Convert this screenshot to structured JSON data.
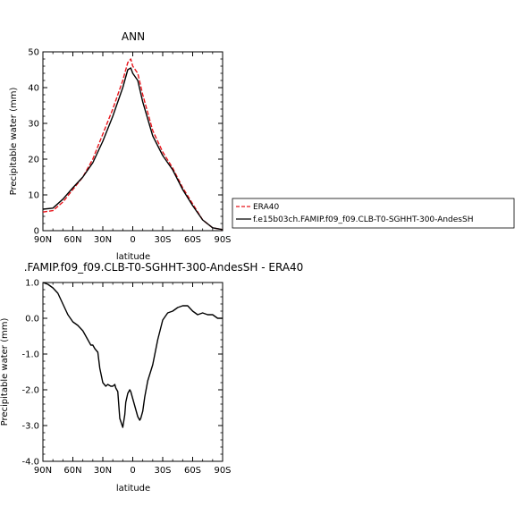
{
  "chart_data": [
    {
      "type": "line",
      "title": "ANN",
      "xlabel": "latitude",
      "ylabel": "Precipitable water (mm)",
      "ylim": [
        0,
        50
      ],
      "yticks": [
        0,
        10,
        20,
        30,
        40,
        50
      ],
      "xlim": [
        90,
        -90
      ],
      "xticks": [
        90,
        60,
        30,
        0,
        -30,
        -60,
        -90
      ],
      "xtick_labels": [
        "90N",
        "60N",
        "30N",
        "0",
        "30S",
        "60S",
        "90S"
      ],
      "legend_position": "right",
      "series": [
        {
          "name": "ERA40",
          "color": "#e8141b",
          "dashed": true,
          "x": [
            90,
            80,
            70,
            60,
            50,
            40,
            30,
            20,
            10,
            5,
            2,
            0,
            -5,
            -10,
            -20,
            -30,
            -40,
            -50,
            -60,
            -70,
            -80,
            -90
          ],
          "y": [
            5.2,
            5.6,
            8.0,
            11.5,
            15.0,
            20.0,
            27.0,
            34.0,
            42.0,
            47.0,
            48.0,
            46.0,
            44.0,
            38.0,
            28.0,
            22.0,
            17.5,
            12.0,
            7.5,
            3.0,
            0.8,
            0.3
          ]
        },
        {
          "name": "f.e15b03ch.FAMIP.f09_f09.CLB-T0-SGHHT-300-AndesSH",
          "color": "#000000",
          "dashed": false,
          "x": [
            90,
            80,
            70,
            60,
            50,
            40,
            30,
            20,
            10,
            5,
            2,
            0,
            -5,
            -10,
            -20,
            -30,
            -40,
            -50,
            -60,
            -70,
            -80,
            -90
          ],
          "y": [
            6.0,
            6.3,
            8.8,
            12.0,
            15.0,
            19.0,
            25.0,
            32.0,
            40.0,
            45.0,
            45.5,
            44.0,
            42.0,
            36.0,
            26.5,
            21.0,
            17.0,
            11.5,
            7.0,
            3.0,
            0.8,
            0.3
          ]
        }
      ]
    },
    {
      "type": "line",
      "title": ".FAMIP.f09_f09.CLB-T0-SGHHT-300-AndesSH - ERA40",
      "xlabel": "latitude",
      "ylabel": "Precipitable water (mm)",
      "ylim": [
        -4.0,
        1.0
      ],
      "yticks": [
        1.0,
        0.0,
        -1.0,
        -2.0,
        -3.0,
        -4.0
      ],
      "ytick_labels": [
        "1.0",
        "0.0",
        "-1.0",
        "-2.0",
        "-3.0",
        "-4.0"
      ],
      "xlim": [
        90,
        -90
      ],
      "xticks": [
        90,
        60,
        30,
        0,
        -30,
        -60,
        -90
      ],
      "xtick_labels": [
        "90N",
        "60N",
        "30N",
        "0",
        "30S",
        "60S",
        "90S"
      ],
      "series": [
        {
          "color": "#000000",
          "x": [
            90,
            85,
            80,
            75,
            70,
            65,
            60,
            55,
            50,
            45,
            42,
            40,
            38,
            35,
            33,
            30,
            27,
            25,
            22,
            20,
            18,
            17,
            15,
            13,
            10,
            8,
            7,
            5,
            3,
            2,
            0,
            -2,
            -5,
            -7,
            -8,
            -10,
            -12,
            -15,
            -20,
            -25,
            -30,
            -35,
            -40,
            -45,
            -50,
            -55,
            -60,
            -65,
            -70,
            -75,
            -80,
            -85,
            -90
          ],
          "y": [
            1.0,
            0.95,
            0.85,
            0.7,
            0.4,
            0.1,
            -0.1,
            -0.2,
            -0.35,
            -0.6,
            -0.75,
            -0.75,
            -0.85,
            -0.95,
            -1.4,
            -1.8,
            -1.9,
            -1.85,
            -1.9,
            -1.9,
            -1.85,
            -1.95,
            -2.05,
            -2.8,
            -3.05,
            -2.7,
            -2.35,
            -2.1,
            -2.0,
            -2.05,
            -2.25,
            -2.45,
            -2.75,
            -2.85,
            -2.8,
            -2.6,
            -2.2,
            -1.75,
            -1.3,
            -0.6,
            -0.05,
            0.15,
            0.2,
            0.3,
            0.35,
            0.35,
            0.2,
            0.1,
            0.15,
            0.1,
            0.1,
            0.0,
            0.0
          ]
        }
      ]
    }
  ]
}
